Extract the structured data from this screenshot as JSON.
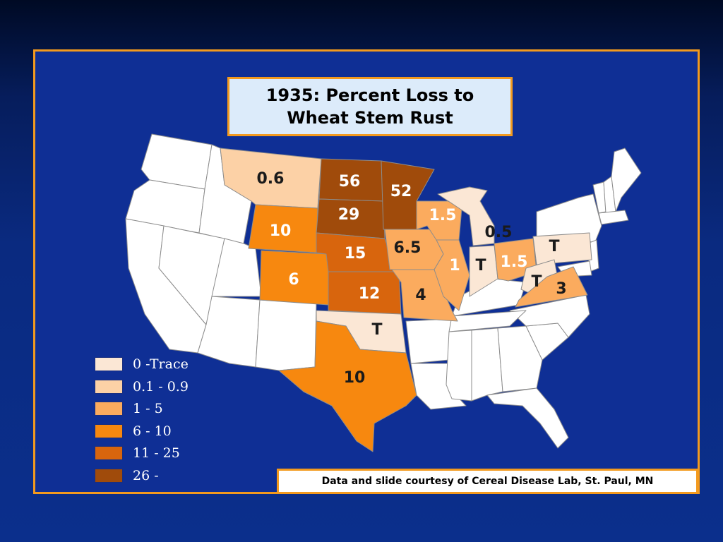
{
  "title_line1": "1935: Percent Loss to",
  "title_line2": "Wheat Stem Rust",
  "credit": "Data and slide courtesy of Cereal Disease Lab, St. Paul, MN",
  "legend": [
    {
      "label": "0 -Trace",
      "color": "#fbe7d5"
    },
    {
      "label": "0.1 - 0.9",
      "color": "#fcd1a6"
    },
    {
      "label": "1 - 5",
      "color": "#fbab5e"
    },
    {
      "label": "6 - 10",
      "color": "#f7880f"
    },
    {
      "label": "11 - 25",
      "color": "#d8650d"
    },
    {
      "label": "26 -",
      "color": "#a04b0b"
    }
  ],
  "colors": {
    "frame_border": "#f39a1e",
    "unaffected_state": "#ffffff",
    "background": "#0b2f8c"
  },
  "states": {
    "MT": {
      "state": "Montana",
      "label": "0.6"
    },
    "WY": {
      "state": "Wyoming",
      "label": "10"
    },
    "CO": {
      "state": "Colorado",
      "label": "6"
    },
    "ND": {
      "state": "North Dakota",
      "label": "56"
    },
    "SD": {
      "state": "South Dakota",
      "label": "29"
    },
    "NE": {
      "state": "Nebraska",
      "label": "15"
    },
    "KS": {
      "state": "Kansas",
      "label": "12"
    },
    "OK": {
      "state": "Oklahoma",
      "label": "T"
    },
    "TX": {
      "state": "Texas",
      "label": "10"
    },
    "MN": {
      "state": "Minnesota",
      "label": "52"
    },
    "IA": {
      "state": "Iowa",
      "label": "6.5"
    },
    "MO": {
      "state": "Missouri",
      "label": "4"
    },
    "WI": {
      "state": "Wisconsin",
      "label": "1.5"
    },
    "IL": {
      "state": "Illinois",
      "label": "1"
    },
    "MI": {
      "state": "Michigan",
      "label": "0.5"
    },
    "IN": {
      "state": "Indiana",
      "label": "T"
    },
    "OH": {
      "state": "Ohio",
      "label": "1.5"
    },
    "PA": {
      "state": "Pennsylvania",
      "label": "T"
    },
    "WV": {
      "state": "West Virginia",
      "label": "T"
    },
    "VA": {
      "state": "Virginia",
      "label": "3"
    }
  }
}
